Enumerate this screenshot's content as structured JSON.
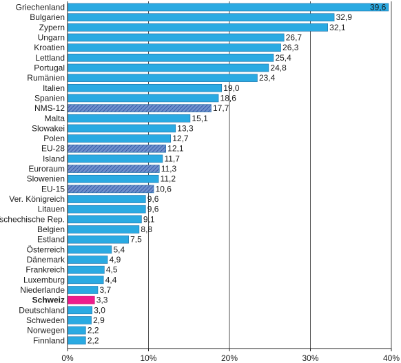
{
  "chart_data": {
    "type": "bar",
    "orientation": "horizontal",
    "categories": [
      "Griechenland",
      "Bulgarien",
      "Zypern",
      "Ungarn",
      "Kroatien",
      "Lettland",
      "Portugal",
      "Rumänien",
      "Italien",
      "Spanien",
      "NMS-12",
      "Malta",
      "Slowakei",
      "Polen",
      "EU-28",
      "Island",
      "Euroraum",
      "Slowenien",
      "EU-15",
      "Ver. Königreich",
      "Litauen",
      "Tschechische Rep.",
      "Belgien",
      "Estland",
      "Österreich",
      "Dänemark",
      "Frankreich",
      "Luxemburg",
      "Niederlande",
      "Schweiz",
      "Deutschland",
      "Schweden",
      "Norwegen",
      "Finnland"
    ],
    "values": [
      39.6,
      32.9,
      32.1,
      26.7,
      26.3,
      25.4,
      24.8,
      23.4,
      19.0,
      18.6,
      17.7,
      15.1,
      13.3,
      12.7,
      12.1,
      11.7,
      11.3,
      11.2,
      10.6,
      9.6,
      9.6,
      9.1,
      8.8,
      7.5,
      5.4,
      4.9,
      4.5,
      4.4,
      3.7,
      3.3,
      3.0,
      2.9,
      2.2,
      2.2
    ],
    "value_labels": [
      "39,6",
      "32,9",
      "32,1",
      "26,7",
      "26,3",
      "25,4",
      "24,8",
      "23,4",
      "19,0",
      "18,6",
      "17,7",
      "15,1",
      "13,3",
      "12,7",
      "12,1",
      "11,7",
      "11,3",
      "11,2",
      "10,6",
      "9,6",
      "9,6",
      "9,1",
      "8,8",
      "7,5",
      "5,4",
      "4,9",
      "4,5",
      "4,4",
      "3,7",
      "3,3",
      "3,0",
      "2,9",
      "2,2",
      "2,2"
    ],
    "aggregates": [
      "NMS-12",
      "EU-28",
      "Euroraum",
      "EU-15"
    ],
    "highlight": "Schweiz",
    "xlim": [
      0,
      40
    ],
    "x_ticks": [
      0,
      10,
      20,
      30,
      40
    ],
    "x_tick_labels": [
      "0%",
      "10%",
      "20%",
      "30%",
      "40%"
    ],
    "grid": "vertical",
    "colors": {
      "bar": "#2aaae2",
      "aggregate_bar": "#6f90cc",
      "aggregate_hatch": "#2a4fa0",
      "highlight_bar": "#ee1c8c",
      "bar_edge": "#1c6fa6",
      "grid": "#222222"
    }
  }
}
